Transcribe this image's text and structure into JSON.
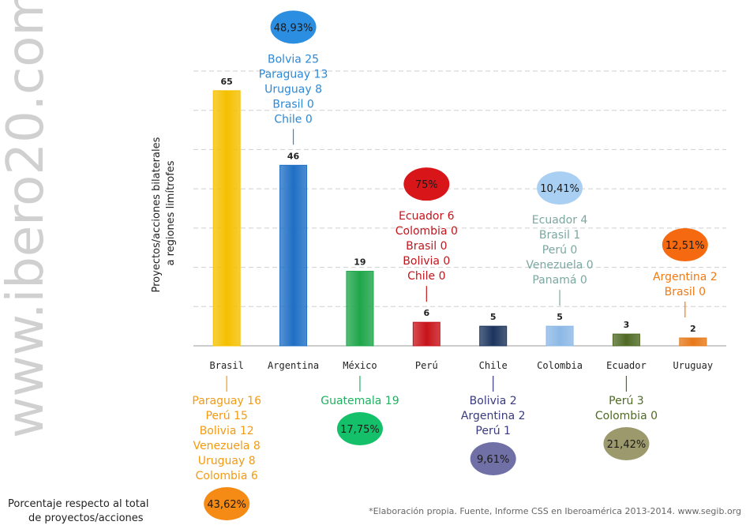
{
  "watermark": "www.ibero20.com",
  "legend_text": [
    "Porcentaje respecto al total",
    "de proyectos/acciones"
  ],
  "source": "*Elaboración propia. Fuente, Informe CSS en Iberoamérica 2013-2014. www.segib.org",
  "chart_data": {
    "type": "bar",
    "ylabel": [
      "Proyectos/acciones bilaterales",
      "a regiones limítrofes"
    ],
    "categories": [
      "Brasil",
      "Argentina",
      "México",
      "Perú",
      "Chile",
      "Colombia",
      "Ecuador",
      "Uruguay"
    ],
    "values": [
      65,
      46,
      19,
      6,
      5,
      5,
      3,
      2
    ],
    "ylim": [
      0,
      70
    ],
    "grid": true,
    "bar_colors": [
      "#f5c000",
      "#1f6fc5",
      "#1ea64a",
      "#c8131a",
      "#1c355e",
      "#8cb8e6",
      "#4f6a24",
      "#e67819"
    ],
    "annotations": [
      {
        "category": "Brasil",
        "position": "below",
        "percent": "43,62%",
        "color": "#f39a13",
        "bubble": "#f58a14",
        "lines": [
          "Paraguay 16",
          "Perú 15",
          "Bolivia 12",
          "Venezuela 8",
          "Uruguay 8",
          "Colombia 6"
        ]
      },
      {
        "category": "Argentina",
        "position": "above",
        "percent": "48,93%",
        "color": "#2a88d6",
        "bubble": "#2b8ee0",
        "lines": [
          "Bolvia 25",
          "Paraguay 13",
          "Uruguay 8",
          "Brasil 0",
          "Chile 0"
        ]
      },
      {
        "category": "México",
        "position": "below",
        "percent": "17,75%",
        "color": "#20b060",
        "bubble": "#15c06a",
        "lines": [
          "Guatemala 19"
        ]
      },
      {
        "category": "Perú",
        "position": "above",
        "percent": "75%",
        "color": "#c4151c",
        "bubble": "#d81518",
        "lines": [
          "Ecuador 6",
          "Colombia 0",
          "Brasil 0",
          "Bolivia 0",
          "Chile 0"
        ]
      },
      {
        "category": "Chile",
        "position": "below",
        "percent": "9,61%",
        "color": "#3a3a80",
        "bubble": "#7070a6",
        "lines": [
          "Bolivia 2",
          "Argentina 2",
          "Perú 1"
        ]
      },
      {
        "category": "Colombia",
        "position": "above",
        "percent": "10,41%",
        "color": "#7aa8a0",
        "bubble": "#a9d0f2",
        "lines": [
          "Ecuador 4",
          "Brasil 1",
          "Perú 0",
          "Venezuela 0",
          "Panamá 0"
        ]
      },
      {
        "category": "Ecuador",
        "position": "below",
        "percent": "21,42%",
        "color": "#4f6a24",
        "bubble": "#9c9a6c",
        "lines": [
          "Perú 3",
          "Colombia 0"
        ]
      },
      {
        "category": "Uruguay",
        "position": "above",
        "percent": "12,51%",
        "color": "#f07a14",
        "bubble": "#f56a10",
        "lines": [
          "Argentina 2",
          "Brasil 0"
        ]
      }
    ]
  }
}
